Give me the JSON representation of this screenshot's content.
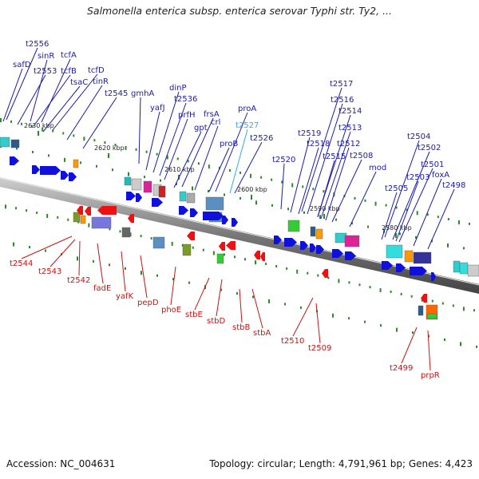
{
  "title": "Salmonella enterica subsp. enterica serovar Typhi str. Ty2, ...",
  "footer": {
    "accession": "Accession: NC_004631",
    "summary": "Topology: circular; Length: 4,791,961 bp; Genes: 4,423"
  },
  "colors": {
    "forward_label": "#1a1aa8",
    "reverse_label": "#cc1111",
    "highlight_label": "#33aadd",
    "forward_arrow": "#1010dd",
    "reverse_arrow": "#ee1111",
    "backbone": "#888888",
    "marker": "#2a8a2a"
  },
  "ticks": [
    "2630 kbp",
    "2620 kbp",
    "2610 kbp",
    "2600 kbp",
    "2590 kbp",
    "2580 kbp"
  ],
  "forward_genes": [
    "t2556",
    "sinR",
    "safD",
    "tcfA",
    "t2553",
    "tcfB",
    "tcfD",
    "tsaC",
    "tinR",
    "t2545",
    "gmhA",
    "dinP",
    "yafJ",
    "t2536",
    "prfH",
    "frsA",
    "gpt",
    "crl",
    "proA",
    "t2527",
    "proB",
    "t2526",
    "t2517",
    "t2516",
    "t2514",
    "t2519",
    "t2513",
    "t2518",
    "t2512",
    "t2515",
    "t2520",
    "t2508",
    "mod",
    "t2504",
    "t2502",
    "t2501",
    "t2503",
    "foxA",
    "t2505",
    "t2498"
  ],
  "highlight_genes": [
    "t2527"
  ],
  "reverse_genes": [
    "t2544",
    "t2543",
    "t2542",
    "fadE",
    "yafK",
    "pepD",
    "phoE",
    "stbE",
    "stbD",
    "stbB",
    "stbA",
    "t2510",
    "t2509",
    "t2499",
    "prpR"
  ]
}
